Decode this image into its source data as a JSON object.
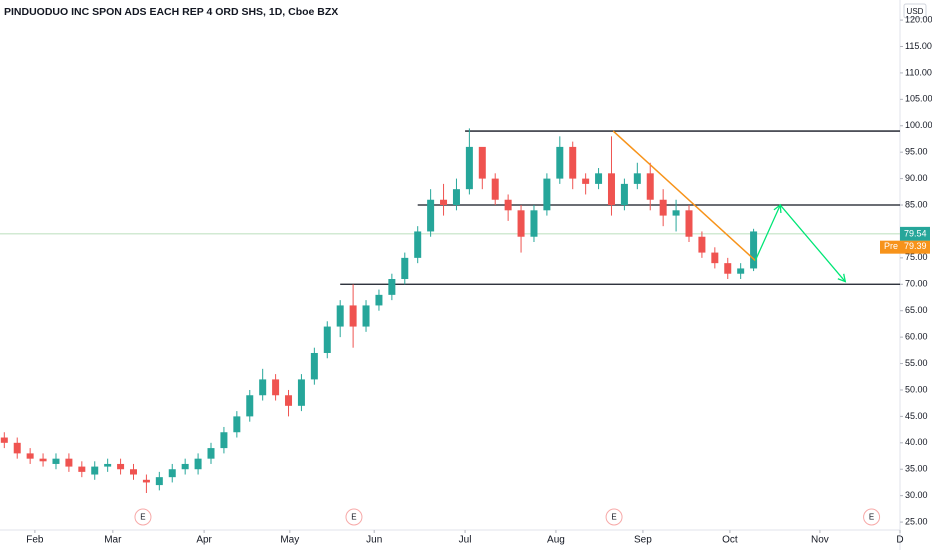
{
  "chart_data": {
    "type": "candlestick",
    "title": "PINDUODUO INC SPON ADS EACH REP 4 ORD SHS, 1D, Cboe BZX",
    "currency": "USD",
    "x": [
      0,
      3,
      6,
      9,
      12,
      15,
      18,
      21,
      24,
      27,
      30,
      33,
      36,
      39,
      42,
      45,
      48,
      51,
      54,
      57,
      60,
      63,
      66,
      69,
      72,
      75,
      78,
      81,
      84,
      87,
      90,
      93,
      96,
      99,
      102,
      105,
      108,
      111,
      114,
      117,
      120,
      123,
      126,
      129,
      132,
      135,
      138,
      141,
      144,
      147,
      150,
      153,
      156,
      159,
      162,
      165,
      168,
      171,
      174
    ],
    "open": [
      41,
      40,
      38,
      37,
      36,
      37,
      35.5,
      34,
      35.5,
      36,
      35,
      33,
      32,
      33.5,
      35,
      35,
      37,
      39,
      42,
      45,
      49,
      52,
      49,
      47,
      52,
      57,
      62,
      66,
      62,
      66,
      68,
      71,
      75,
      80,
      86,
      85,
      88,
      96,
      90,
      86,
      84,
      79,
      84,
      90,
      96,
      90,
      89,
      91,
      85,
      89,
      91,
      86,
      83,
      84,
      79,
      76,
      74,
      72,
      73
    ],
    "high": [
      42,
      41,
      39,
      38,
      38,
      38,
      36.5,
      36.5,
      37,
      37,
      36,
      34,
      34.5,
      36,
      37,
      38,
      40,
      43,
      46,
      50,
      54,
      53,
      50,
      53,
      58,
      63,
      67,
      70,
      67,
      69,
      72,
      76,
      81,
      88,
      89,
      90,
      99.5,
      95,
      91,
      87,
      85,
      85,
      91,
      98,
      97,
      91,
      92,
      98,
      90,
      93,
      93,
      88,
      86,
      85,
      80,
      77,
      75,
      74,
      80.5
    ],
    "low": [
      39,
      37,
      36,
      35.5,
      35,
      34.5,
      33.5,
      33,
      34.5,
      34,
      33,
      30.5,
      31,
      32.5,
      34,
      34,
      36,
      38,
      41,
      44,
      48,
      48,
      45,
      46,
      51,
      56,
      60,
      58,
      61,
      65,
      67,
      70,
      74,
      79,
      83,
      84,
      87,
      88,
      85,
      82,
      76,
      78,
      83,
      89,
      88,
      87,
      88,
      83,
      84,
      88,
      84,
      81,
      80,
      78,
      75,
      73,
      71,
      71,
      72.5
    ],
    "close": [
      40,
      38,
      37,
      36.5,
      37,
      35.5,
      34.5,
      35.5,
      36,
      35,
      34,
      32.5,
      33.5,
      35,
      36,
      37,
      39,
      42,
      45,
      49,
      52,
      49,
      47,
      52,
      57,
      62,
      66,
      62,
      66,
      68,
      71,
      75,
      80,
      86,
      85,
      88,
      96,
      90,
      86,
      84,
      79,
      84,
      90,
      96,
      90,
      89,
      91,
      85,
      89,
      91,
      86,
      83,
      84,
      79,
      76,
      74,
      72,
      73,
      80
    ],
    "up_color": "#26a69a",
    "down_color": "#ef5350",
    "xlim": [
      -1,
      208
    ],
    "ylim": [
      23.5,
      123.8
    ],
    "xticks": [
      {
        "value": 7.1,
        "label": "Feb"
      },
      {
        "value": 25.2,
        "label": "Mar"
      },
      {
        "value": 46.4,
        "label": "Apr"
      },
      {
        "value": 66.3,
        "label": "May"
      },
      {
        "value": 85.9,
        "label": "Jun"
      },
      {
        "value": 107,
        "label": "Jul"
      },
      {
        "value": 128.1,
        "label": "Aug"
      },
      {
        "value": 148.3,
        "label": "Sep"
      },
      {
        "value": 168.5,
        "label": "Oct"
      },
      {
        "value": 189.4,
        "label": "Nov"
      },
      {
        "value": 208,
        "label": "D"
      }
    ],
    "yticks": [
      {
        "value": 25,
        "label": "25.00"
      },
      {
        "value": 30,
        "label": "30.00"
      },
      {
        "value": 35,
        "label": "35.00"
      },
      {
        "value": 40,
        "label": "40.00"
      },
      {
        "value": 45,
        "label": "45.00"
      },
      {
        "value": 50,
        "label": "50.00"
      },
      {
        "value": 55,
        "label": "55.00"
      },
      {
        "value": 60,
        "label": "60.00"
      },
      {
        "value": 65,
        "label": "65.00"
      },
      {
        "value": 70,
        "label": "70.00"
      },
      {
        "value": 75,
        "label": "75.00"
      },
      {
        "value": 80,
        "label": "80.00"
      },
      {
        "value": 85,
        "label": "85.00"
      },
      {
        "value": 90,
        "label": "90.00"
      },
      {
        "value": 95,
        "label": "95.00"
      },
      {
        "value": 100,
        "label": "100.00"
      },
      {
        "value": 105,
        "label": "105.00"
      },
      {
        "value": 110,
        "label": "110.00"
      },
      {
        "value": 115,
        "label": "115.00"
      },
      {
        "value": 120,
        "label": "120.00"
      }
    ],
    "last_price": 79.54,
    "last_color": "#26a69a",
    "premarket": {
      "label": "Pre",
      "value": 79.39,
      "color": "#f7931a"
    },
    "levels": [
      {
        "x": 107,
        "y": 99
      },
      {
        "x": 96,
        "y": 85
      },
      {
        "x": 78,
        "y": 70
      }
    ],
    "trendline": {
      "x": [
        141.4,
        174.4
      ],
      "y": [
        99,
        74.5
      ],
      "color": "#f7931a"
    },
    "projection": {
      "x": [
        174.4,
        180.2,
        195.3
      ],
      "y": [
        74.5,
        85,
        70.5
      ],
      "color": "#00e676"
    },
    "events": [
      {
        "x": 32.2,
        "label": "E"
      },
      {
        "x": 81.2,
        "label": "E"
      },
      {
        "x": 141.6,
        "label": "E"
      },
      {
        "x": 201.4,
        "label": "E"
      }
    ]
  }
}
